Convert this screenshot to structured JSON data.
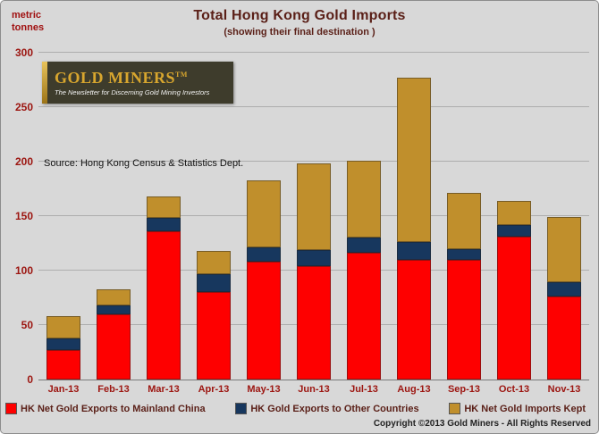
{
  "header": {
    "title": "Total Hong Kong Gold Imports",
    "subtitle": "(showing their final destination )",
    "unit_line1": "metric",
    "unit_line2": "tonnes"
  },
  "logo": {
    "name": "GOLD MINERS",
    "tm": "TM",
    "tagline": "The Newsletter for Discerning Gold Mining Investors"
  },
  "source_note": "Source:  Hong Kong Census & Statistics Dept.",
  "footer": {
    "copyright": "Copyright ©2013  Gold Miners - All Rights Reserved"
  },
  "colors": {
    "background": "#d8d8d8",
    "title_text": "#5a1f17",
    "axis_text": "#9c1510",
    "series_red": "#fe0000",
    "series_blue": "#17375e",
    "series_gold": "#c08f2c",
    "logo_background": "#3e3c2c",
    "logo_gold": "#d8a62e"
  },
  "chart_data": {
    "type": "bar",
    "stacked": true,
    "title": "Total Hong Kong Gold Imports",
    "subtitle": "(showing their final destination )",
    "ylabel": "metric tonnes",
    "xlabel": "",
    "ylim": [
      0,
      300
    ],
    "yticks": [
      0,
      50,
      100,
      150,
      200,
      250,
      300
    ],
    "grid": true,
    "legend_position": "bottom",
    "categories": [
      "Jan-13",
      "Feb-13",
      "Mar-13",
      "Apr-13",
      "May-13",
      "Jun-13",
      "Jul-13",
      "Aug-13",
      "Sep-13",
      "Oct-13",
      "Nov-13"
    ],
    "series": [
      {
        "name": "HK Net Gold Exports to Mainland China",
        "color": "#fe0000",
        "values": [
          27,
          60,
          136,
          80,
          108,
          104,
          116,
          110,
          110,
          131,
          76
        ]
      },
      {
        "name": "HK Gold Exports to Other Countries",
        "color": "#17375e",
        "values": [
          11,
          8,
          12,
          17,
          13,
          15,
          14,
          16,
          10,
          11,
          13
        ]
      },
      {
        "name": "HK Net Gold Imports Kept",
        "color": "#c08f2c",
        "values": [
          20,
          15,
          20,
          21,
          62,
          79,
          71,
          151,
          51,
          22,
          60
        ]
      }
    ],
    "totals": [
      58,
      83,
      168,
      118,
      183,
      198,
      201,
      277,
      171,
      164,
      149
    ]
  }
}
